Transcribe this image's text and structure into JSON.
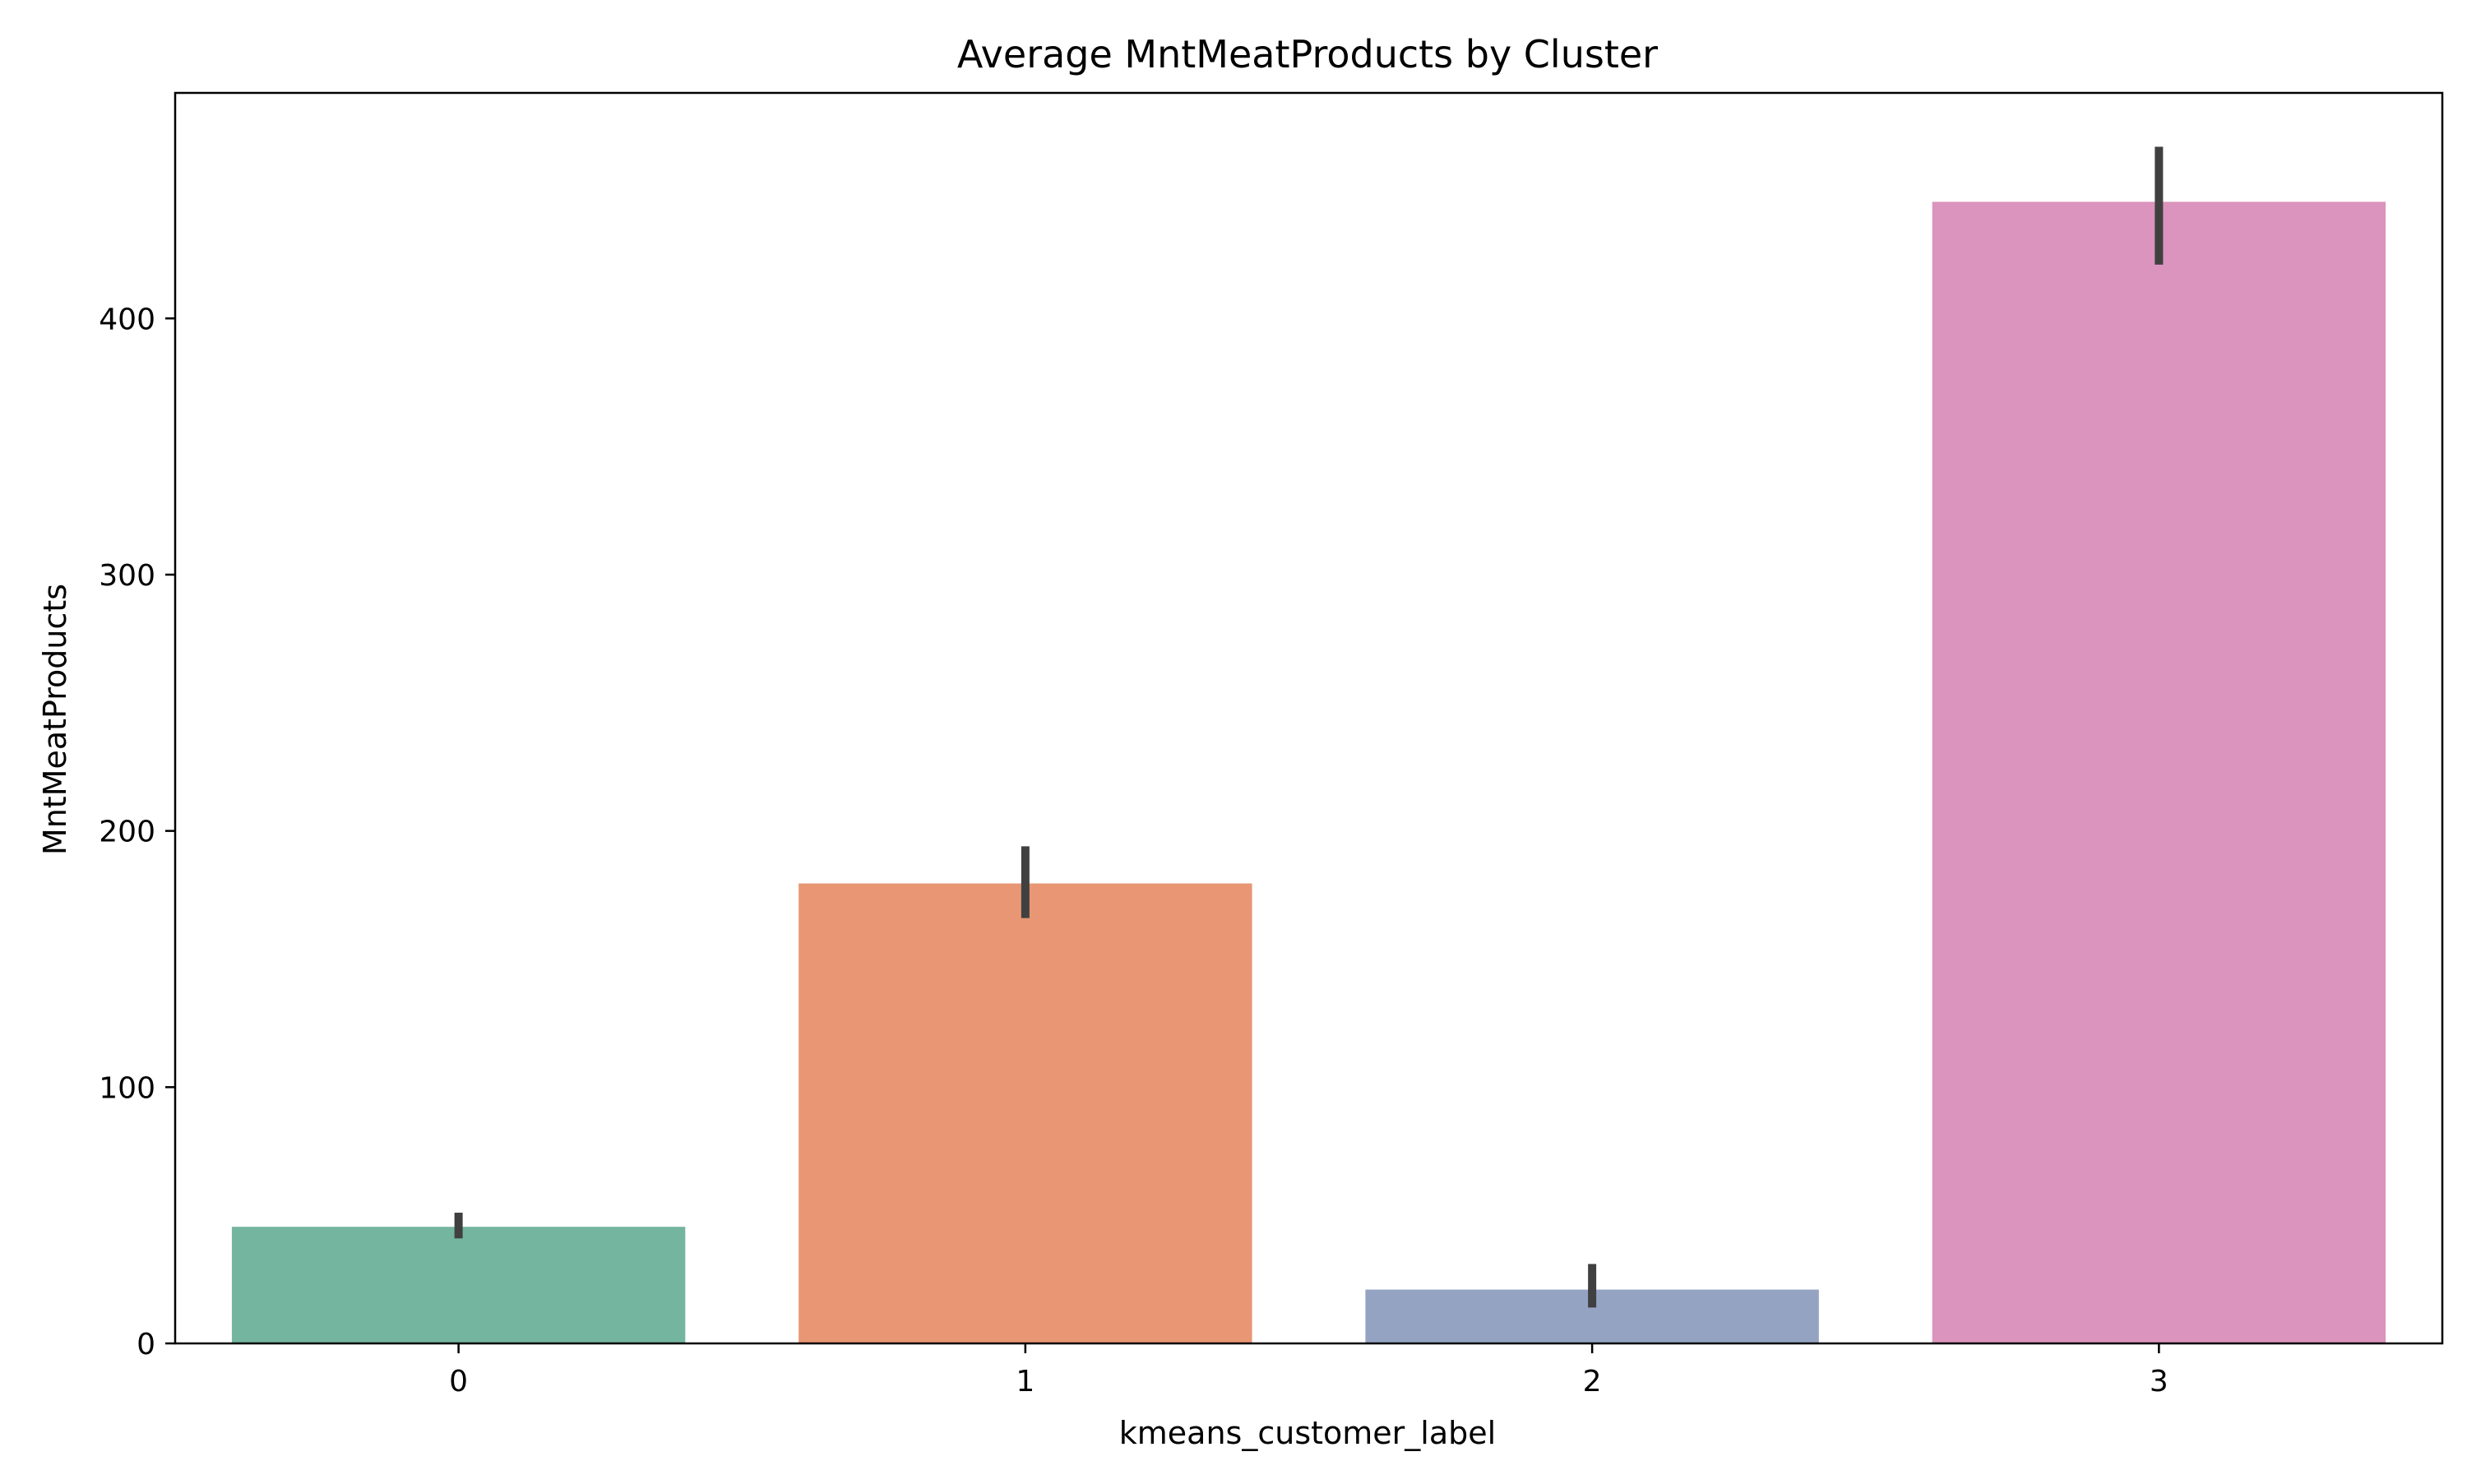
{
  "chart_data": {
    "type": "bar",
    "title": "Average MntMeatProducts by Cluster",
    "xlabel": "kmeans_customer_label",
    "ylabel": "MntMeatProducts",
    "categories": [
      "0",
      "1",
      "2",
      "3"
    ],
    "values": [
      45.5,
      179.5,
      21,
      445.5
    ],
    "error_bars": [
      [
        41,
        51
      ],
      [
        166,
        194
      ],
      [
        14,
        31
      ],
      [
        421,
        467
      ]
    ],
    "colors": [
      "#74b59f",
      "#e89674",
      "#95a3c3",
      "#db94bd"
    ],
    "error_bar_color": "#404040",
    "ylim": [
      0,
      488
    ],
    "yticks": [
      0,
      100,
      200,
      300,
      400
    ],
    "grid": false,
    "legend": "none"
  }
}
